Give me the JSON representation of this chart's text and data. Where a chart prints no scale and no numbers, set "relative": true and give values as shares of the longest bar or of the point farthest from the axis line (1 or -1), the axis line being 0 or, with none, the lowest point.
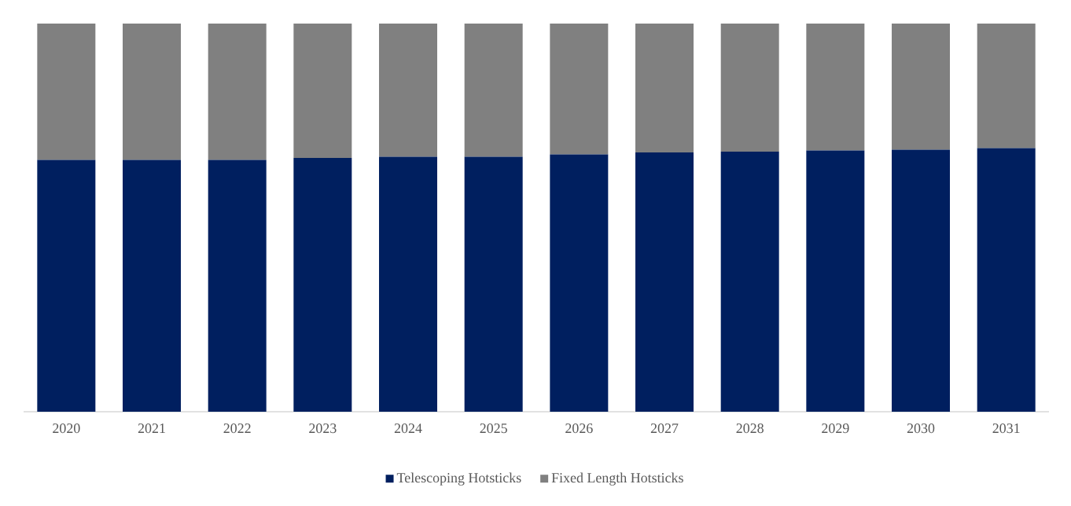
{
  "chart_data": {
    "type": "bar",
    "stacked": true,
    "relative": true,
    "legend": "bottom",
    "categories": [
      "2020",
      "2021",
      "2022",
      "2023",
      "2024",
      "2025",
      "2026",
      "2027",
      "2028",
      "2029",
      "2030",
      "2031"
    ],
    "series": [
      {
        "name": "Telescoping Hotsticks",
        "color": "#001f5f",
        "values": [
          0.649,
          0.649,
          0.649,
          0.654,
          0.657,
          0.657,
          0.663,
          0.668,
          0.67,
          0.673,
          0.675,
          0.679
        ]
      },
      {
        "name": "Fixed Length Hotsticks",
        "color": "#808080",
        "values": [
          0.351,
          0.351,
          0.351,
          0.346,
          0.343,
          0.343,
          0.337,
          0.332,
          0.33,
          0.327,
          0.325,
          0.321
        ]
      }
    ]
  }
}
